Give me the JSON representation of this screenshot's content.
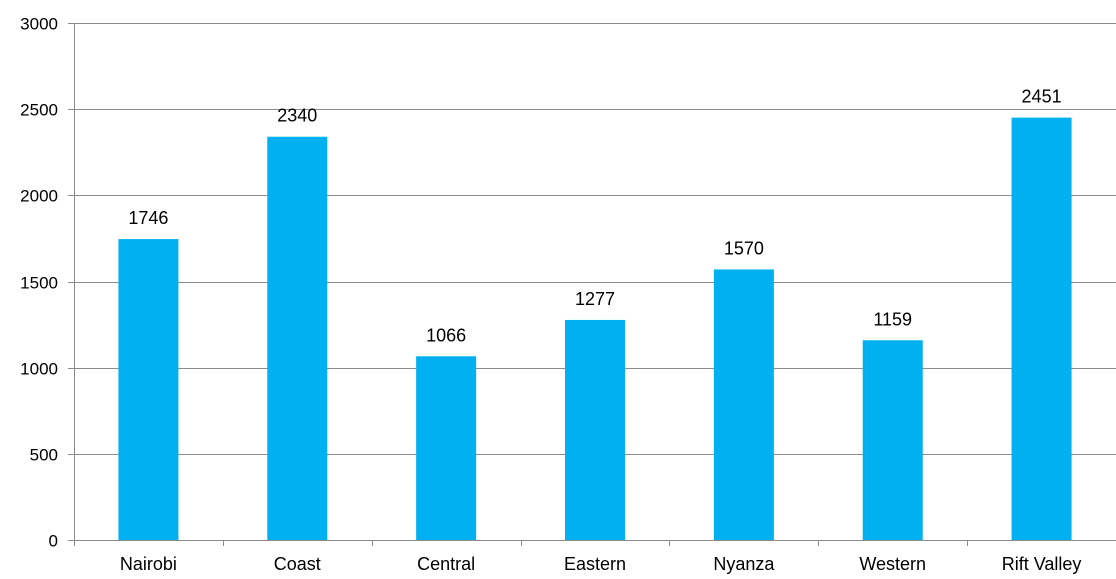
{
  "chart_data": {
    "type": "bar",
    "title": "",
    "xlabel": "",
    "ylabel": "",
    "categories": [
      "Nairobi",
      "Coast",
      "Central",
      "Eastern",
      "Nyanza",
      "Western",
      "Rift Valley"
    ],
    "values": [
      1746,
      2340,
      1066,
      1277,
      1570,
      1159,
      2451
    ],
    "ylim": [
      0,
      3000
    ],
    "yticks": [
      0,
      500,
      1000,
      1500,
      2000,
      2500,
      3000
    ],
    "grid": true,
    "legend": "none",
    "data_labels": true,
    "bar_color": "#00b0f0",
    "grid_color": "#8c8c8c"
  }
}
